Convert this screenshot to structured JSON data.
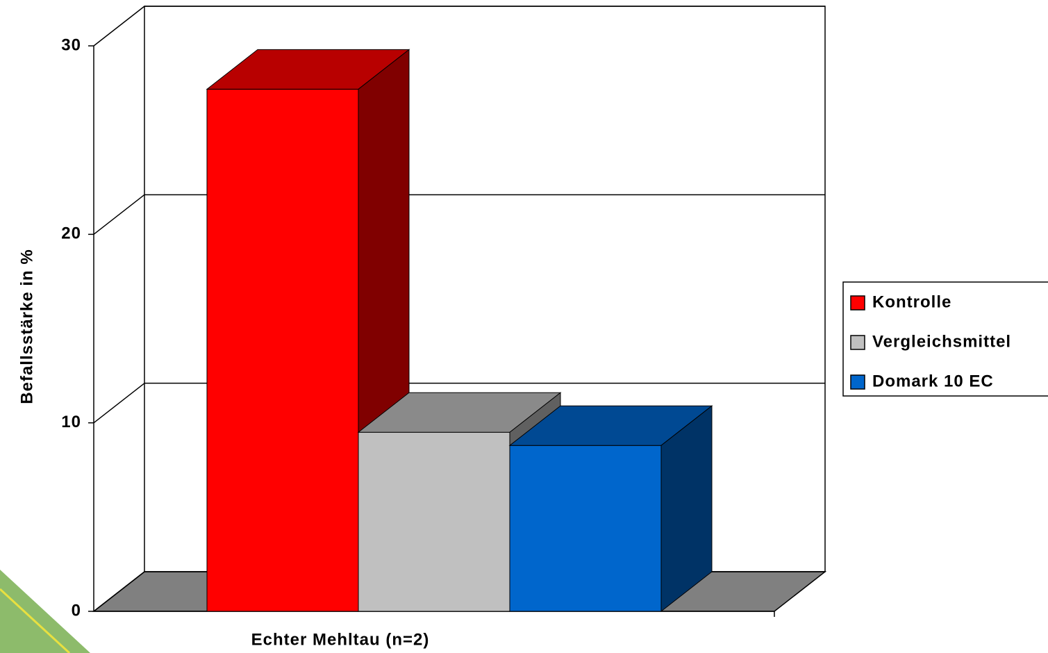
{
  "chart_data": {
    "type": "bar3d",
    "y_label": "Befallsstärke in %",
    "categories": [
      "Echter Mehltau (n=2)"
    ],
    "series": [
      {
        "name": "Kontrolle",
        "color": "#ff0000",
        "values": [
          27.7
        ]
      },
      {
        "name": "Vergleichsmittel",
        "color": "#c0c0c0",
        "values": [
          9.5
        ]
      },
      {
        "name": "Domark 10 EC",
        "color": "#0066cc",
        "values": [
          8.8
        ]
      }
    ],
    "ylim": [
      0,
      30
    ],
    "yticks": [
      0,
      10,
      20,
      30
    ],
    "grid": true,
    "legend": "right"
  }
}
